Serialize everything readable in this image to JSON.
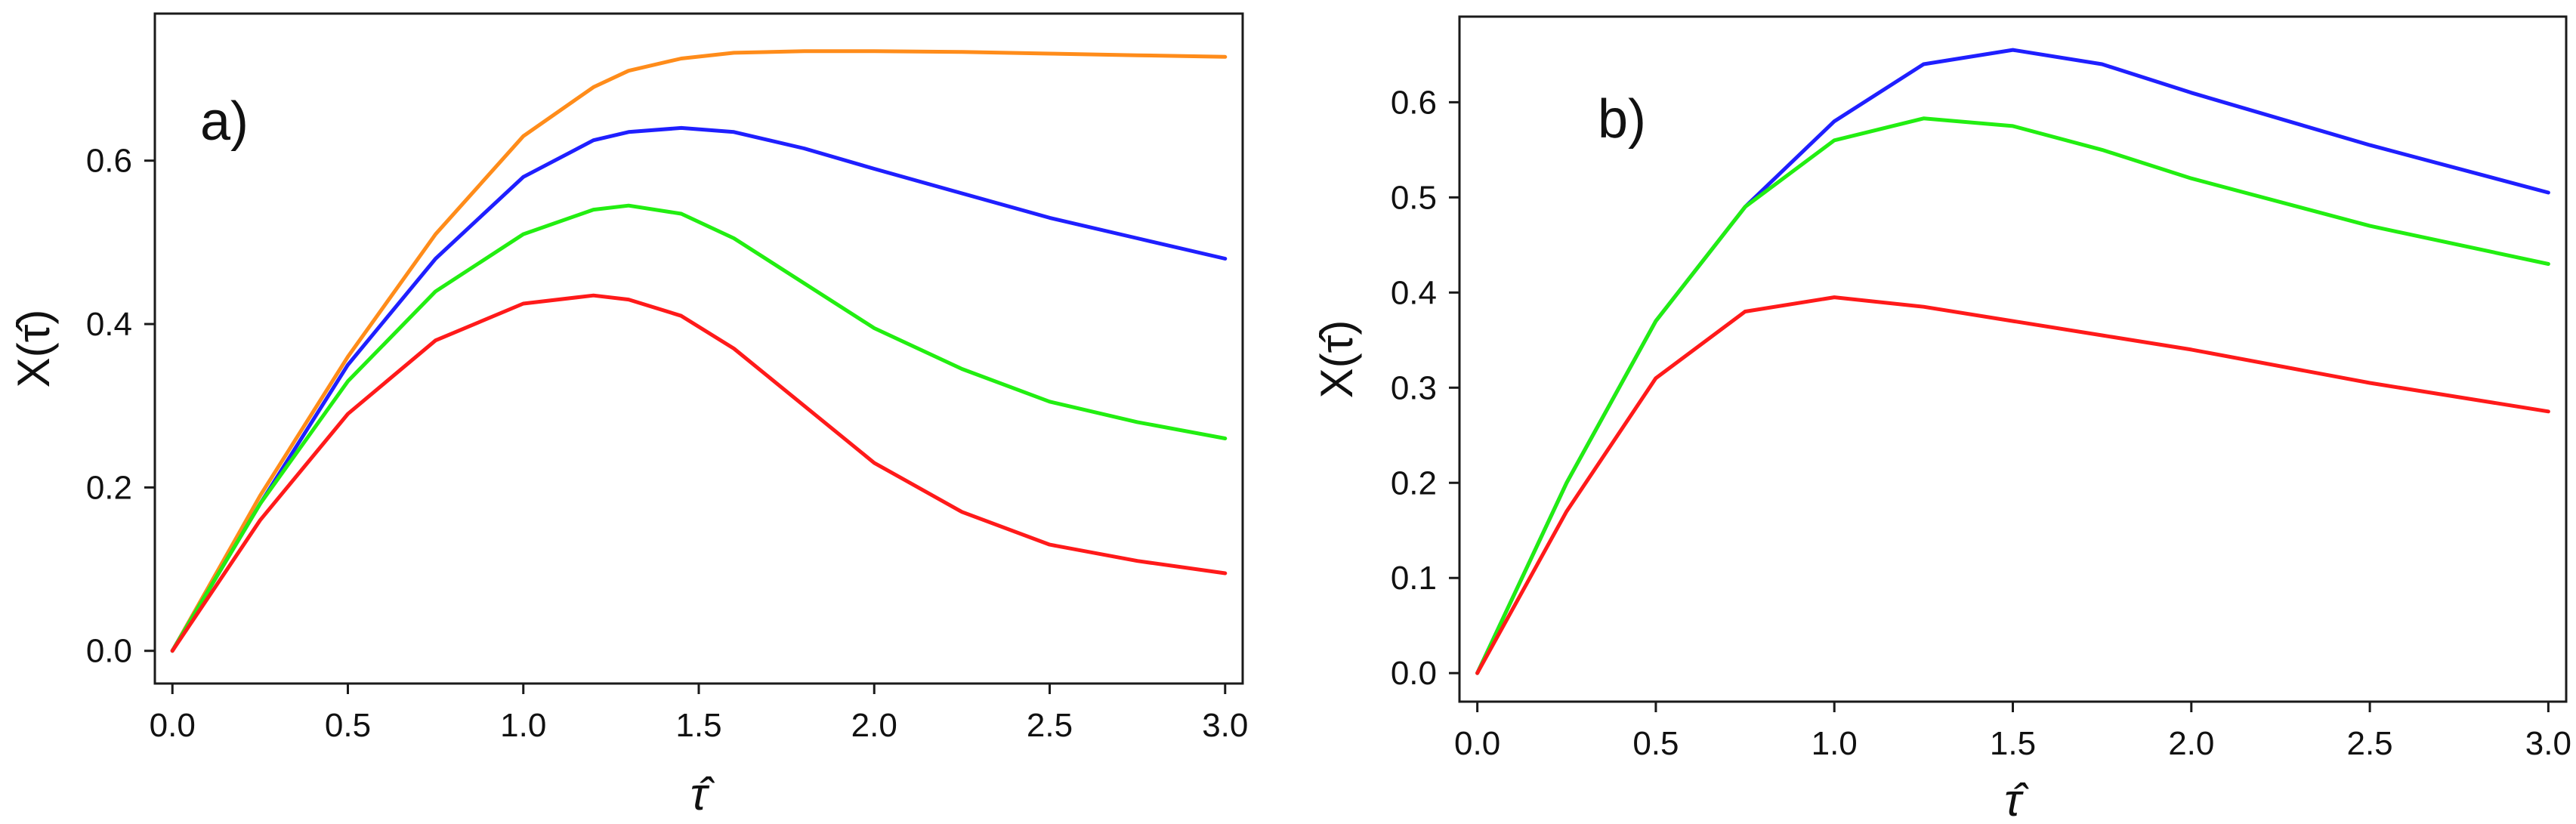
{
  "chart_data": [
    {
      "type": "line",
      "panel_label": "a)",
      "xlabel": "τ̂",
      "ylabel": "X(τ̂)",
      "xlim": [
        -0.05,
        3.05
      ],
      "ylim": [
        -0.04,
        0.78
      ],
      "xticks": [
        0.0,
        0.5,
        1.0,
        1.5,
        2.0,
        2.5,
        3.0
      ],
      "xtick_labels": [
        "0.0",
        "0.5",
        "1.0",
        "1.5",
        "2.0",
        "2.5",
        "3.0"
      ],
      "yticks": [
        0.0,
        0.2,
        0.4,
        0.6
      ],
      "ytick_labels": [
        "0.0",
        "0.2",
        "0.4",
        "0.6"
      ],
      "x": [
        0.0,
        0.25,
        0.5,
        0.75,
        1.0,
        1.2,
        1.3,
        1.45,
        1.6,
        1.8,
        2.0,
        2.25,
        2.5,
        2.75,
        3.0
      ],
      "series": [
        {
          "name": "orange",
          "color": "#ff8c1a",
          "values": [
            0.0,
            0.19,
            0.36,
            0.51,
            0.63,
            0.69,
            0.71,
            0.725,
            0.732,
            0.734,
            0.734,
            0.733,
            0.731,
            0.729,
            0.727
          ]
        },
        {
          "name": "blue",
          "color": "#1f1fff",
          "values": [
            0.0,
            0.18,
            0.35,
            0.48,
            0.58,
            0.625,
            0.635,
            0.64,
            0.635,
            0.615,
            0.59,
            0.56,
            0.53,
            0.505,
            0.48
          ]
        },
        {
          "name": "green",
          "color": "#22ee11",
          "values": [
            0.0,
            0.18,
            0.33,
            0.44,
            0.51,
            0.54,
            0.545,
            0.535,
            0.505,
            0.45,
            0.395,
            0.345,
            0.305,
            0.28,
            0.26
          ]
        },
        {
          "name": "red",
          "color": "#ff1a1a",
          "values": [
            0.0,
            0.16,
            0.29,
            0.38,
            0.425,
            0.435,
            0.43,
            0.41,
            0.37,
            0.3,
            0.23,
            0.17,
            0.13,
            0.11,
            0.095
          ]
        }
      ]
    },
    {
      "type": "line",
      "panel_label": "b)",
      "xlabel": "τ̂",
      "ylabel": "X(τ̂)",
      "xlim": [
        -0.05,
        3.05
      ],
      "ylim": [
        -0.03,
        0.69
      ],
      "xticks": [
        0.0,
        0.5,
        1.0,
        1.5,
        2.0,
        2.5,
        3.0
      ],
      "xtick_labels": [
        "0.0",
        "0.5",
        "1.0",
        "1.5",
        "2.0",
        "2.5",
        "3.0"
      ],
      "yticks": [
        0.0,
        0.1,
        0.2,
        0.3,
        0.4,
        0.5,
        0.6
      ],
      "ytick_labels": [
        "0.0",
        "0.1",
        "0.2",
        "0.3",
        "0.4",
        "0.5",
        "0.6"
      ],
      "x": [
        0.0,
        0.25,
        0.5,
        0.75,
        1.0,
        1.25,
        1.5,
        1.75,
        2.0,
        2.5,
        3.0
      ],
      "series": [
        {
          "name": "blue",
          "color": "#1f1fff",
          "values": [
            0.0,
            0.2,
            0.37,
            0.49,
            0.58,
            0.64,
            0.655,
            0.64,
            0.61,
            0.555,
            0.505
          ]
        },
        {
          "name": "green",
          "color": "#22ee11",
          "values": [
            0.0,
            0.2,
            0.37,
            0.49,
            0.56,
            0.583,
            0.575,
            0.55,
            0.52,
            0.47,
            0.43
          ]
        },
        {
          "name": "red",
          "color": "#ff1a1a",
          "values": [
            0.0,
            0.17,
            0.31,
            0.38,
            0.395,
            0.385,
            0.37,
            0.355,
            0.34,
            0.305,
            0.275
          ]
        }
      ]
    }
  ]
}
